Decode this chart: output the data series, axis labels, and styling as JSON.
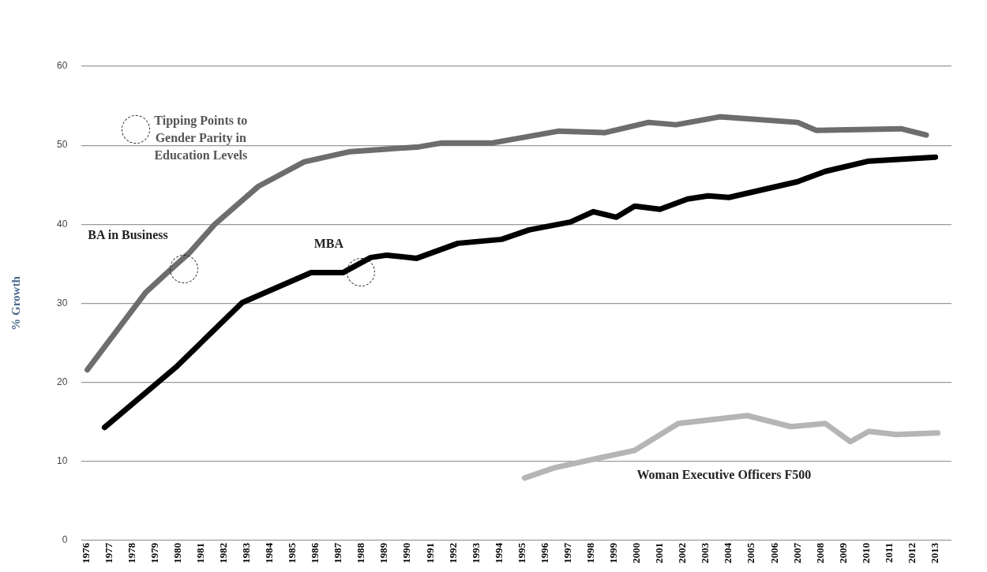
{
  "chart_data": {
    "type": "line",
    "ylabel": "% Growth",
    "xlim": [
      1975.8,
      2013.7
    ],
    "xticks": [
      1976,
      1977,
      1978,
      1979,
      1980,
      1981,
      1982,
      1983,
      1984,
      1985,
      1986,
      1987,
      1988,
      1989,
      1990,
      1991,
      1992,
      1993,
      1994,
      1995,
      1996,
      1997,
      1998,
      1999,
      2000,
      2001,
      2002,
      2003,
      2004,
      2005,
      2006,
      2007,
      2008,
      2009,
      2010,
      2011,
      2012,
      2013
    ],
    "ylim": [
      0,
      60
    ],
    "yticks": [
      0,
      10,
      20,
      30,
      40,
      50,
      60
    ],
    "grid": "y",
    "legend": false,
    "marker": "none",
    "line_style": "solid",
    "annotations": [
      "Tipping Points to Gender Parity in Education Levels"
    ],
    "series": [
      {
        "name": "BA in Business",
        "color": "#6d6d6d",
        "x": [
          1976.05,
          1978.6,
          1979.5,
          1980.5,
          1981.6,
          1983.5,
          1985.5,
          1987.5,
          1988.0,
          1990.5,
          1991.5,
          1993.7,
          1996.6,
          1998.6,
          2000.5,
          2001.7,
          2003.6,
          2007.0,
          2007.8,
          2011.5,
          2012.6
        ],
        "values": [
          21.6,
          31.4,
          33.8,
          36.4,
          40.0,
          44.8,
          47.9,
          49.2,
          49.3,
          49.8,
          50.3,
          50.3,
          51.8,
          51.6,
          52.9,
          52.6,
          53.6,
          52.9,
          51.9,
          52.1,
          51.3
        ]
      },
      {
        "name": "MBA",
        "color": "#000000",
        "x": [
          1976.8,
          1979.9,
          1982.8,
          1985.8,
          1987.2,
          1988.4,
          1989.1,
          1990.4,
          1992.2,
          1994.1,
          1995.3,
          1997.1,
          1998.1,
          1999.1,
          1999.9,
          2001.0,
          2002.2,
          2003.1,
          2004.0,
          2007.0,
          2008.2,
          2010.1,
          2013.0
        ],
        "values": [
          14.3,
          21.9,
          30.1,
          33.9,
          33.9,
          35.8,
          36.1,
          35.7,
          37.6,
          38.1,
          39.3,
          40.3,
          41.6,
          40.9,
          42.3,
          41.9,
          43.2,
          43.6,
          43.4,
          45.4,
          46.7,
          48.0,
          48.5
        ]
      },
      {
        "name": "Woman Executive Officers F500",
        "color": "#b5b5b5",
        "x": [
          1995.1,
          1996.4,
          1999.9,
          2001.8,
          2004.8,
          2006.7,
          2008.2,
          2009.3,
          2010.1,
          2011.3,
          2013.1
        ],
        "values": [
          7.9,
          9.2,
          11.4,
          14.8,
          15.8,
          14.4,
          14.8,
          12.5,
          13.8,
          13.4,
          13.6
        ]
      }
    ]
  }
}
